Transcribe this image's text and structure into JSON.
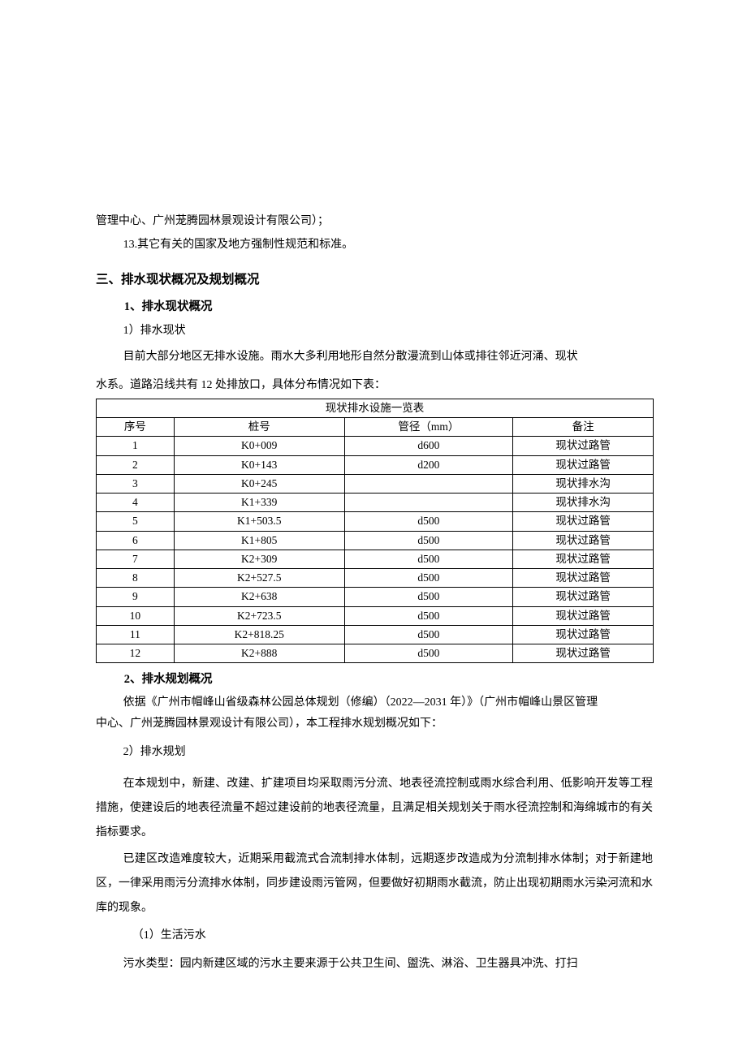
{
  "intro": {
    "l1": "管理中心、广州茏腾园林景观设计有限公司）；",
    "l2": "13.其它有关的国家及地方强制性规范和标准。"
  },
  "section3": {
    "title": "三、排水现状概况及规划概况",
    "sub1": {
      "title": "1、排水现状概况",
      "p1": "1）排水现状",
      "p2": "目前大部分地区无排水设施。雨水大多利用地形自然分散漫流到山体或排往邻近河涌、现状",
      "p3": "水系。道路沿线共有 12 处排放口，具体分布情况如下表：",
      "table": {
        "caption": "现状排水设施一览表",
        "widths": {
          "c1": 96,
          "c2": 210,
          "c3": 208,
          "c4": 173
        },
        "heights": {
          "caption": 20,
          "header": 20,
          "row": 20,
          "row_tall": 22
        },
        "col_headers": [
          "序号",
          "桩号",
          "管径（mm）",
          "备注"
        ],
        "rows": [
          [
            "1",
            "K0+009",
            "d600",
            "现状过路管"
          ],
          [
            "2",
            "K0+143",
            "d200",
            "现状过路管"
          ],
          [
            "3",
            "K0+245",
            "",
            "现状排水沟"
          ],
          [
            "4",
            "K1+339",
            "",
            "现状排水沟"
          ],
          [
            "5",
            "K1+503.5",
            "d500",
            "现状过路管"
          ],
          [
            "6",
            "K1+805",
            "d500",
            "现状过路管"
          ],
          [
            "7",
            "K2+309",
            "d500",
            "现状过路管"
          ],
          [
            "8",
            "K2+527.5",
            "d500",
            "现状过路管"
          ],
          [
            "9",
            "K2+638",
            "d500",
            "现状过路管"
          ],
          [
            "10",
            "K2+723.5",
            "d500",
            "现状过路管"
          ],
          [
            "11",
            "K2+818.25",
            "d500",
            "现状过路管"
          ],
          [
            "12",
            "K2+888",
            "d500",
            "现状过路管"
          ]
        ],
        "tall_rows": [
          5,
          8
        ]
      }
    },
    "sub2": {
      "title": "2、排水规划概况",
      "p1a": "依据《广州市帽峰山省级森林公园总体规划（修编）（2022—2031 年）》（广州市帽峰山景区管理",
      "p1b": "中心、广州茏腾园林景观设计有限公司），本工程排水规划概况如下：",
      "p2": "2）排水规划",
      "p3": "在本规划中，新建、改建、扩建项目均采取雨污分流、地表径流控制或雨水综合利用、低影响开发等工程措施，使建设后的地表径流量不超过建设前的地表径流量，且满足相关规划关于雨水径流控制和海绵城市的有关指标要求。",
      "p4": "已建区改造难度较大，近期采用截流式合流制排水体制，远期逐步改造成为分流制排水体制；对于新建地区，一律采用雨污分流排水体制，同步建设雨污管网，但要做好初期雨水截流，防止出现初期雨水污染河流和水库的现象。",
      "p5": "（1）生活污水",
      "p6": "污水类型：园内新建区域的污水主要来源于公共卫生间、盥洗、淋浴、卫生器具冲洗、打扫"
    }
  },
  "colors": {
    "text": "#000000",
    "background": "#ffffff",
    "border": "#000000"
  },
  "typography": {
    "body_fontsize": 14,
    "h2_fontsize": 15.5,
    "h3_fontsize": 14.5,
    "table_fontsize": 13.5,
    "line_height_body": 1.8,
    "line_height_para": 2.15
  }
}
